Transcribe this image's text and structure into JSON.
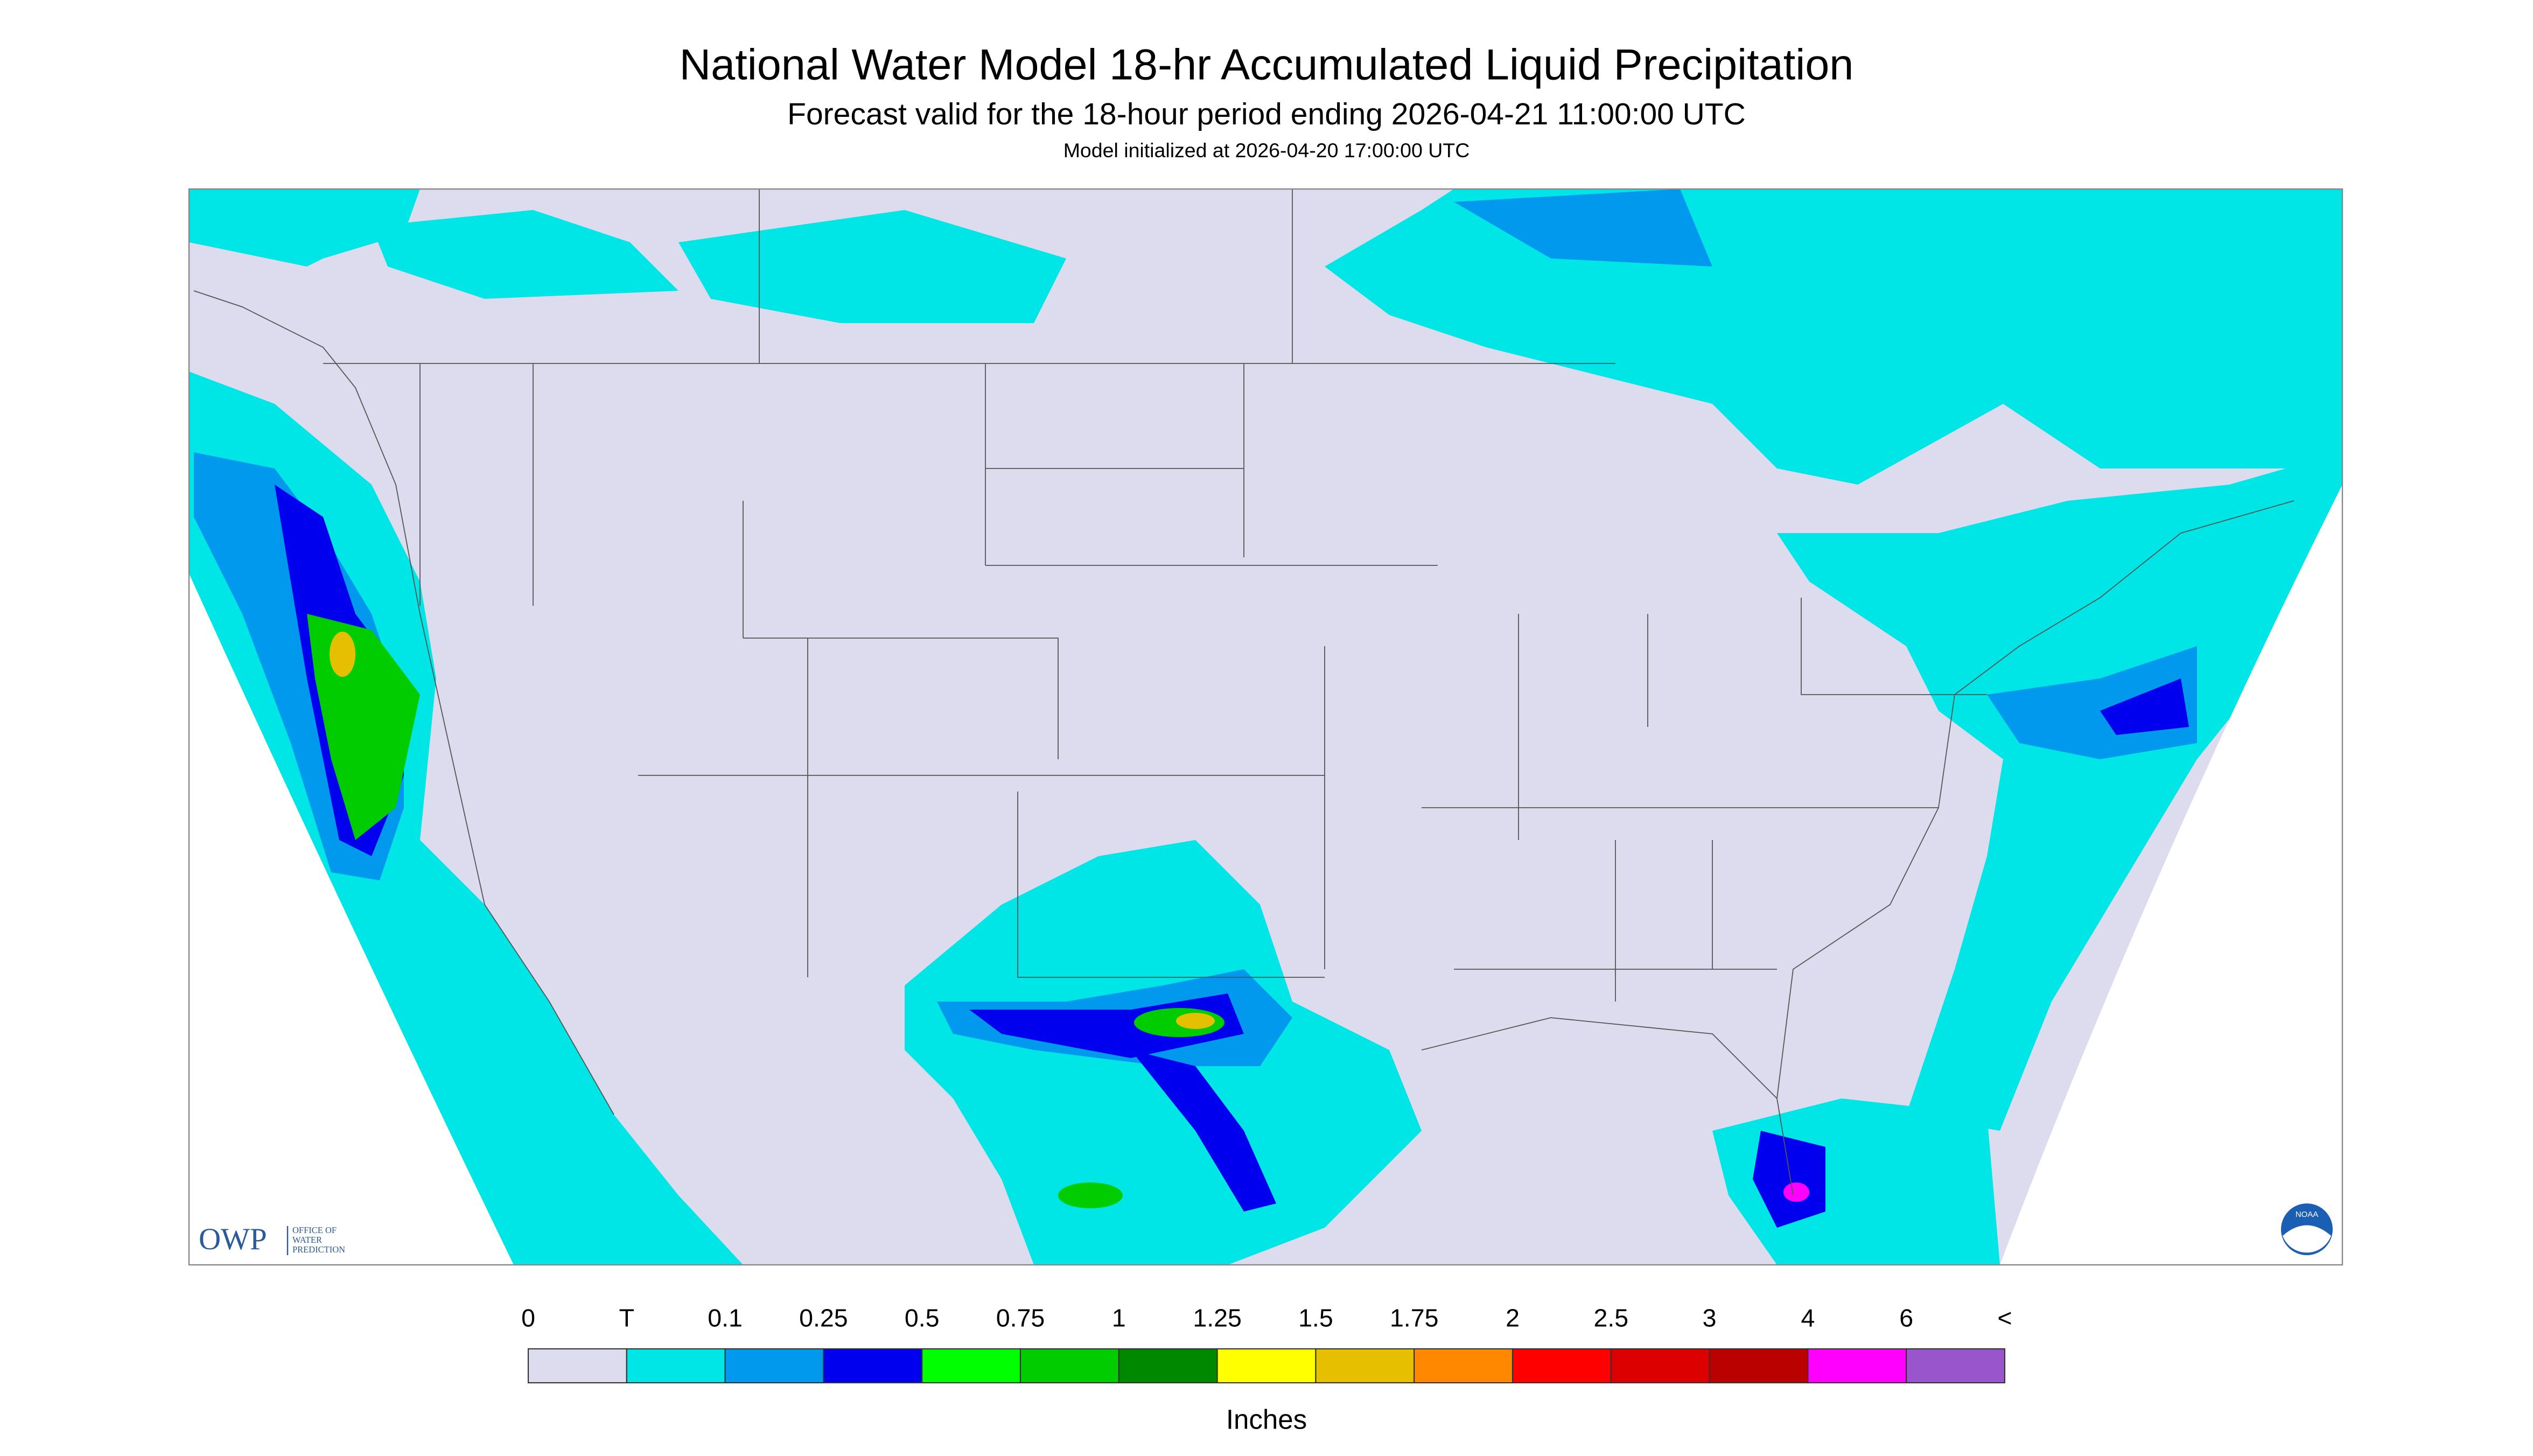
{
  "header": {
    "title": "National Water Model 18-hr Accumulated Liquid Precipitation",
    "subtitle": "Forecast valid for the 18-hour period ending 2026-04-21 11:00:00 UTC",
    "initialized": "Model initialized at 2026-04-20 17:00:00 UTC"
  },
  "logos": {
    "owp": "OWP",
    "owp_name": [
      "OFFICE OF",
      "WATER",
      "PREDICTION"
    ],
    "noaa": "NOAA"
  },
  "legend": {
    "labels": [
      "0",
      "T",
      "0.1",
      "0.25",
      "0.5",
      "0.75",
      "1",
      "1.25",
      "1.5",
      "1.75",
      "2",
      "2.5",
      "3",
      "4",
      "6",
      "<"
    ],
    "colors": [
      "#dcdcee",
      "#00e5e5",
      "#0099ee",
      "#0000ee",
      "#00ff00",
      "#00cc00",
      "#008800",
      "#ffff00",
      "#e5bf00",
      "#ff8800",
      "#ff0000",
      "#dd0000",
      "#bb0000",
      "#ff00ff",
      "#9955cc"
    ],
    "unit": "Inches"
  }
}
